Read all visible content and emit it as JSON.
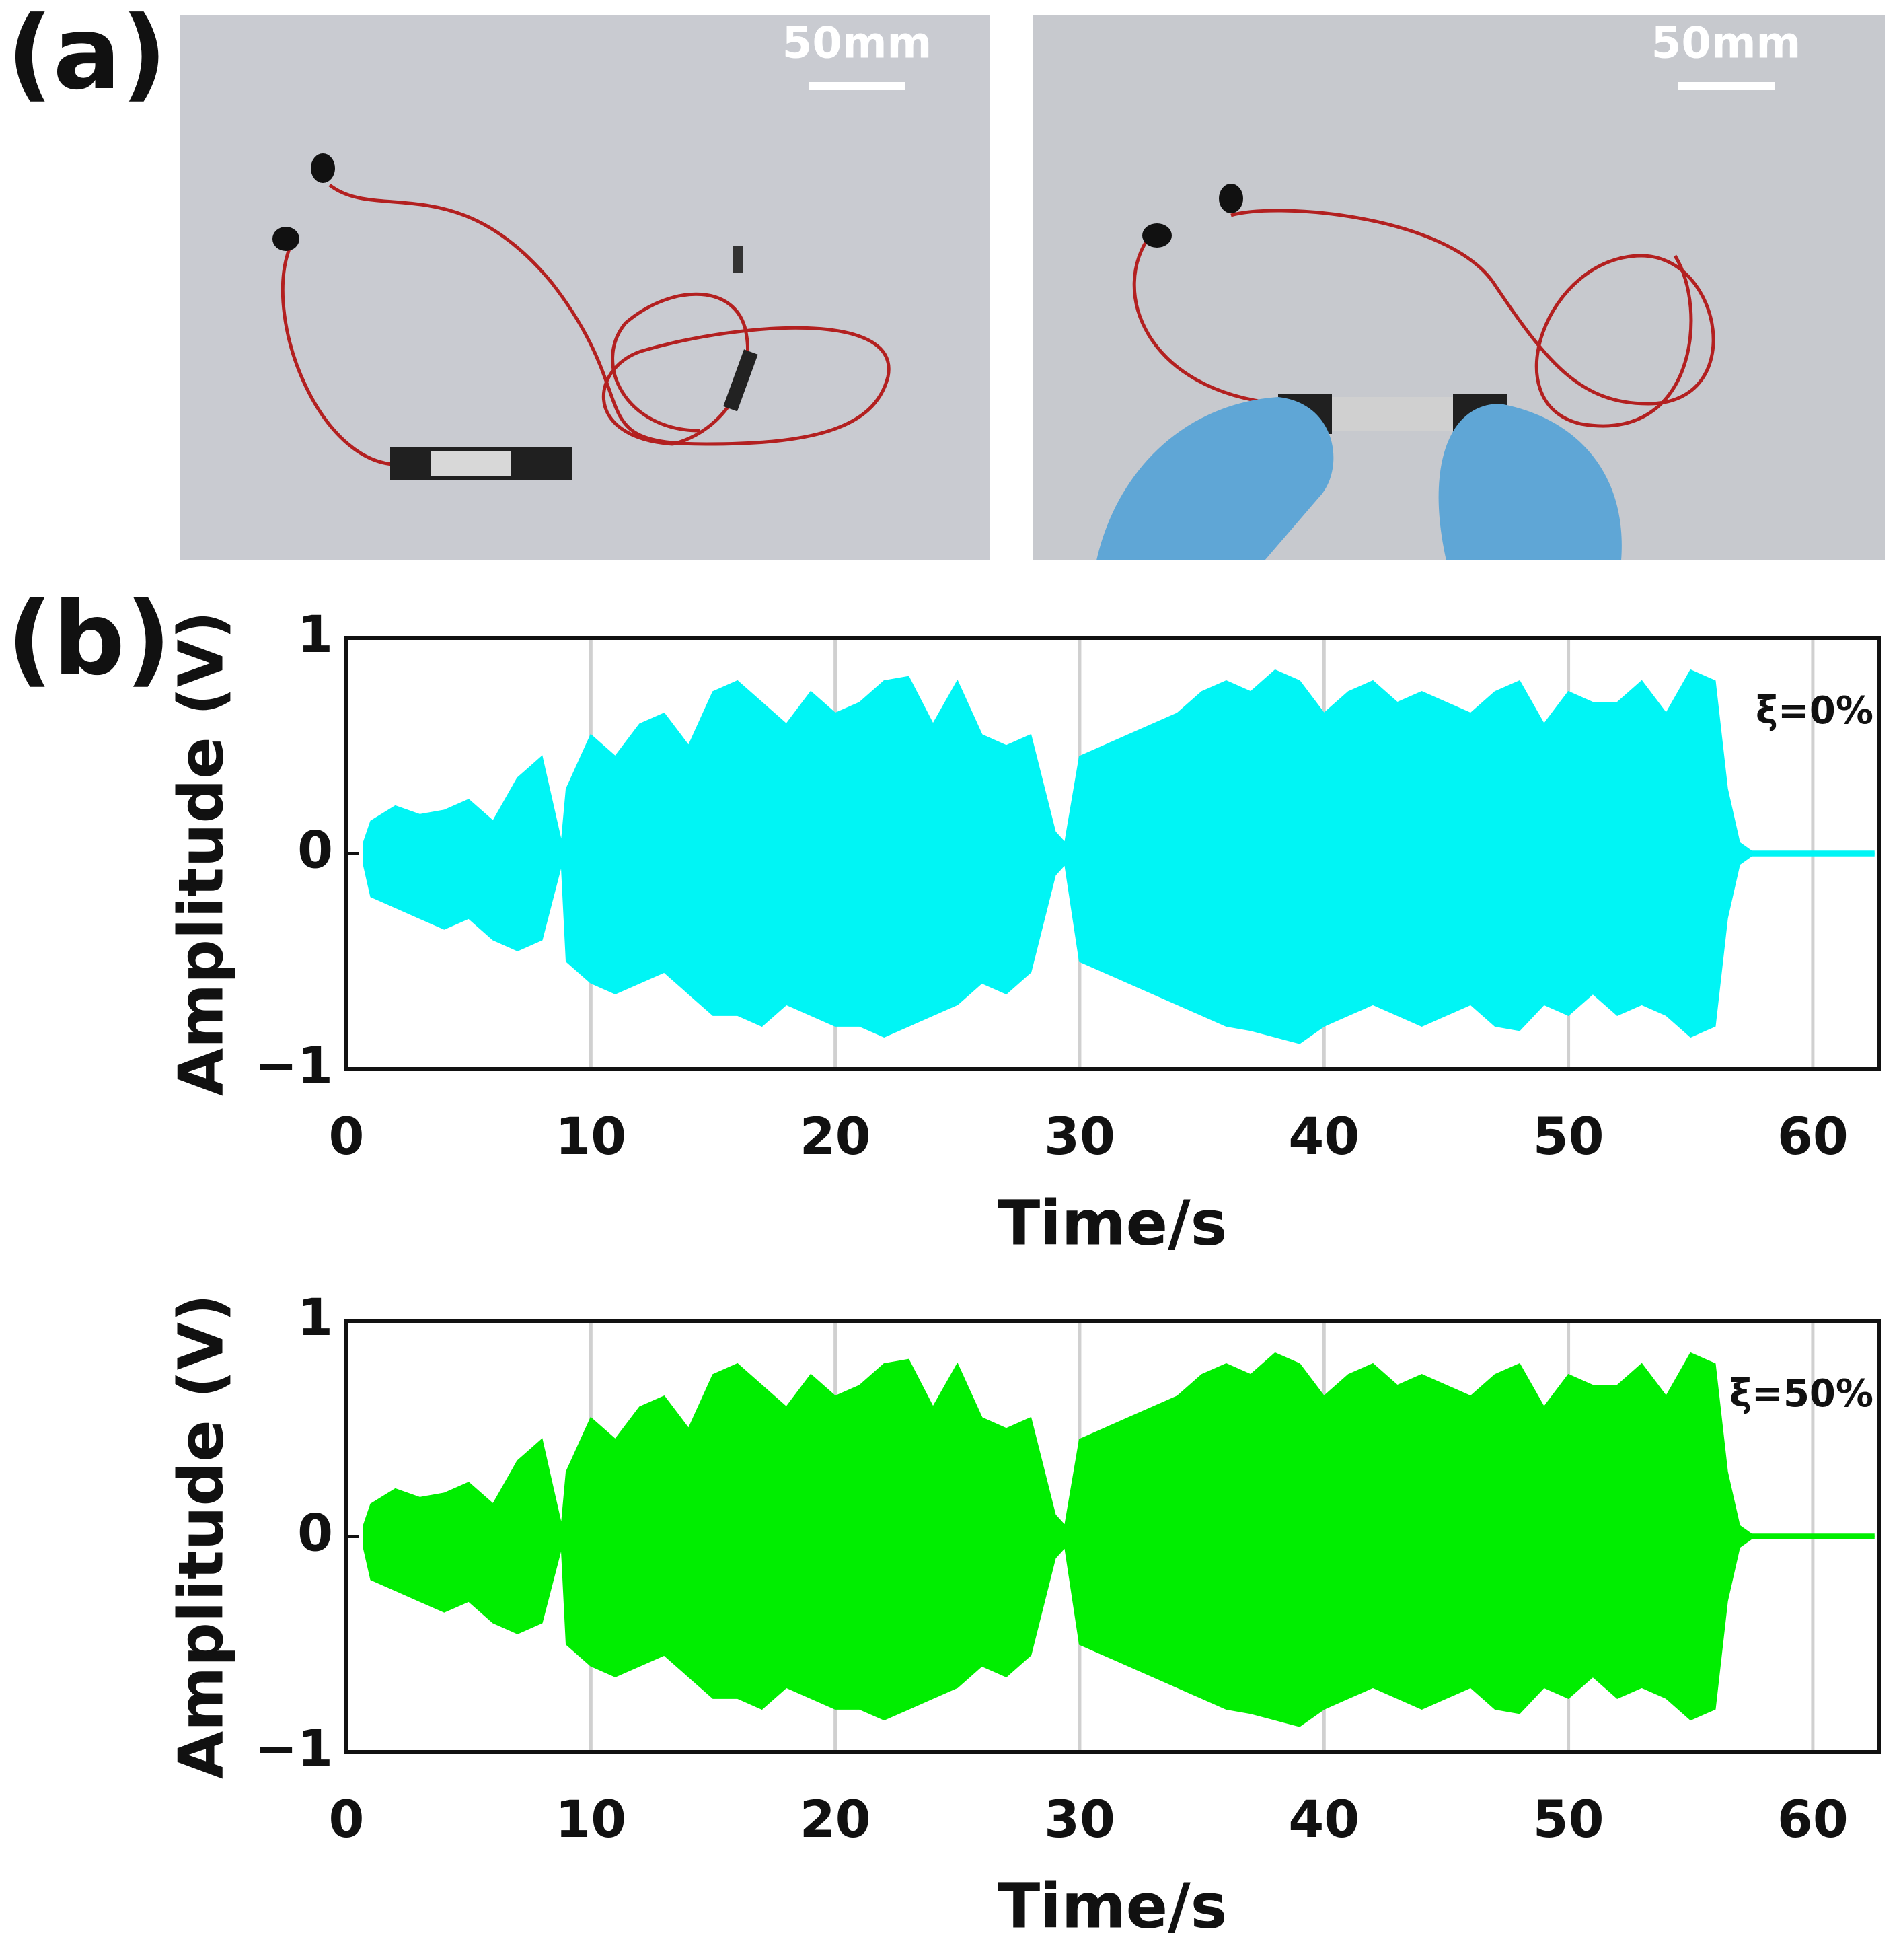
{
  "panel_labels": {
    "a": "(a)",
    "b": "(b)"
  },
  "photos": [
    {
      "scale_bar": "50mm"
    },
    {
      "scale_bar": "50mm"
    }
  ],
  "chart_data": [
    {
      "type": "area",
      "color": "#00f5f5",
      "x": [
        0.7,
        1,
        2,
        3,
        4,
        5,
        6,
        7,
        8,
        8.8,
        9,
        10,
        11,
        12,
        13,
        14,
        15,
        16,
        17,
        18,
        19,
        20,
        21,
        22,
        23,
        24,
        25,
        26,
        27,
        28,
        29,
        29.4,
        30,
        31,
        32,
        33,
        34,
        35,
        36,
        37,
        38,
        39,
        40,
        41,
        42,
        43,
        44,
        45,
        46,
        47,
        48,
        49,
        50,
        51,
        52,
        53,
        54,
        55,
        56,
        56.5,
        57,
        57.5,
        62.5
      ],
      "series": [
        {
          "values": [
            0.05,
            0.15,
            0.22,
            0.18,
            0.2,
            0.25,
            0.15,
            0.35,
            0.45,
            0.05,
            0.3,
            0.55,
            0.45,
            0.6,
            0.65,
            0.5,
            0.75,
            0.8,
            0.7,
            0.6,
            0.75,
            0.65,
            0.7,
            0.8,
            0.82,
            0.6,
            0.8,
            0.55,
            0.5,
            0.55,
            0.1,
            0.05,
            0.45,
            0.5,
            0.55,
            0.6,
            0.65,
            0.75,
            0.8,
            0.75,
            0.85,
            0.8,
            0.65,
            0.75,
            0.8,
            0.7,
            0.75,
            0.7,
            0.65,
            0.75,
            0.8,
            0.6,
            0.75,
            0.7,
            0.7,
            0.8,
            0.65,
            0.85,
            0.8,
            0.3,
            0.05,
            0.01,
            0.01
          ]
        },
        {
          "values": [
            -0.05,
            -0.2,
            -0.25,
            -0.3,
            -0.35,
            -0.3,
            -0.4,
            -0.45,
            -0.4,
            -0.05,
            -0.5,
            -0.6,
            -0.65,
            -0.6,
            -0.55,
            -0.65,
            -0.75,
            -0.75,
            -0.8,
            -0.7,
            -0.75,
            -0.8,
            -0.8,
            -0.85,
            -0.8,
            -0.75,
            -0.7,
            -0.6,
            -0.65,
            -0.55,
            -0.1,
            -0.05,
            -0.5,
            -0.55,
            -0.6,
            -0.65,
            -0.7,
            -0.75,
            -0.8,
            -0.82,
            -0.85,
            -0.88,
            -0.8,
            -0.75,
            -0.7,
            -0.75,
            -0.8,
            -0.75,
            -0.7,
            -0.8,
            -0.82,
            -0.7,
            -0.75,
            -0.65,
            -0.75,
            -0.7,
            -0.75,
            -0.85,
            -0.8,
            -0.3,
            -0.05,
            -0.01,
            -0.01
          ]
        }
      ],
      "xlim": [
        0,
        62.7
      ],
      "ylim": [
        -1,
        1
      ],
      "xticks": [
        0,
        10,
        20,
        30,
        40,
        50,
        60
      ],
      "yticks": [
        {
          "value": -1,
          "label": "−1"
        },
        0,
        1
      ],
      "grid": "x",
      "xlabel": "Time/s",
      "ylabel": "Amplitude (V)",
      "annotation": "ξ=0%"
    },
    {
      "type": "area",
      "color": "#00ee00",
      "x": [
        0.7,
        1,
        2,
        3,
        4,
        5,
        6,
        7,
        8,
        8.8,
        9,
        10,
        11,
        12,
        13,
        14,
        15,
        16,
        17,
        18,
        19,
        20,
        21,
        22,
        23,
        24,
        25,
        26,
        27,
        28,
        29,
        29.4,
        30,
        31,
        32,
        33,
        34,
        35,
        36,
        37,
        38,
        39,
        40,
        41,
        42,
        43,
        44,
        45,
        46,
        47,
        48,
        49,
        50,
        51,
        52,
        53,
        54,
        55,
        56,
        56.5,
        57,
        57.5,
        62.5
      ],
      "series": [
        {
          "values": [
            0.05,
            0.15,
            0.22,
            0.18,
            0.2,
            0.25,
            0.15,
            0.35,
            0.45,
            0.05,
            0.3,
            0.55,
            0.45,
            0.6,
            0.65,
            0.5,
            0.75,
            0.8,
            0.7,
            0.6,
            0.75,
            0.65,
            0.7,
            0.8,
            0.82,
            0.6,
            0.8,
            0.55,
            0.5,
            0.55,
            0.1,
            0.05,
            0.45,
            0.5,
            0.55,
            0.6,
            0.65,
            0.75,
            0.8,
            0.75,
            0.85,
            0.8,
            0.65,
            0.75,
            0.8,
            0.7,
            0.75,
            0.7,
            0.65,
            0.75,
            0.8,
            0.6,
            0.75,
            0.7,
            0.7,
            0.8,
            0.65,
            0.85,
            0.8,
            0.3,
            0.05,
            0.01,
            0.01
          ]
        },
        {
          "values": [
            -0.05,
            -0.2,
            -0.25,
            -0.3,
            -0.35,
            -0.3,
            -0.4,
            -0.45,
            -0.4,
            -0.05,
            -0.5,
            -0.6,
            -0.65,
            -0.6,
            -0.55,
            -0.65,
            -0.75,
            -0.75,
            -0.8,
            -0.7,
            -0.75,
            -0.8,
            -0.8,
            -0.85,
            -0.8,
            -0.75,
            -0.7,
            -0.6,
            -0.65,
            -0.55,
            -0.1,
            -0.05,
            -0.5,
            -0.55,
            -0.6,
            -0.65,
            -0.7,
            -0.75,
            -0.8,
            -0.82,
            -0.85,
            -0.88,
            -0.8,
            -0.75,
            -0.7,
            -0.75,
            -0.8,
            -0.75,
            -0.7,
            -0.8,
            -0.82,
            -0.7,
            -0.75,
            -0.65,
            -0.75,
            -0.7,
            -0.75,
            -0.85,
            -0.8,
            -0.3,
            -0.05,
            -0.01,
            -0.01
          ]
        }
      ],
      "xlim": [
        0,
        62.7
      ],
      "ylim": [
        -1,
        1
      ],
      "xticks": [
        0,
        10,
        20,
        30,
        40,
        50,
        60
      ],
      "yticks": [
        {
          "value": -1,
          "label": "−1"
        },
        0,
        1
      ],
      "grid": "x",
      "xlabel": "Time/s",
      "ylabel": "Amplitude (V)",
      "annotation": "ξ=50%"
    }
  ]
}
